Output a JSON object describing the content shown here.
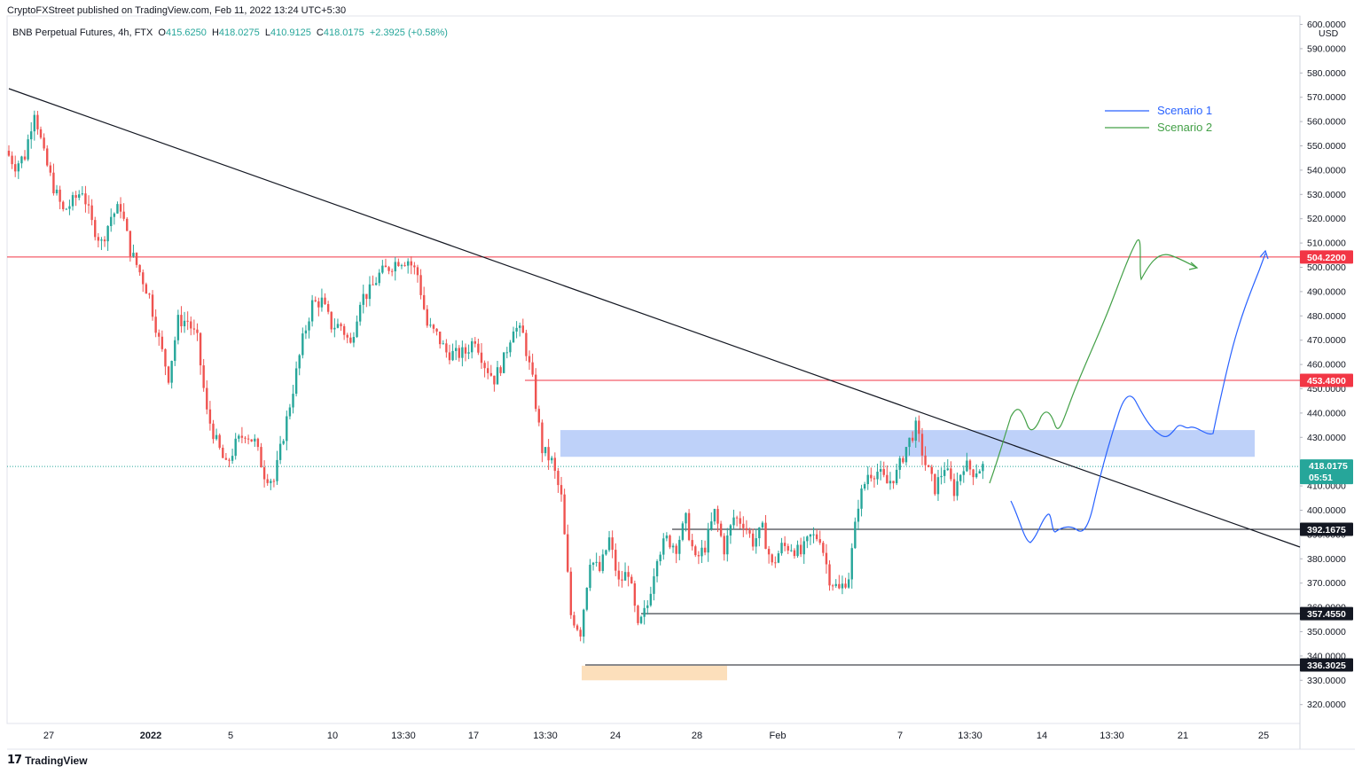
{
  "header": {
    "published_line": "CryptoFXStreet published on TradingView.com, Feb 11, 2022 13:24 UTC+5:30"
  },
  "symbol": {
    "name": "BNB Perpetual Futures, 4h, FTX",
    "o_label": "O",
    "o_value": "415.6250",
    "h_label": "H",
    "h_value": "418.0275",
    "l_label": "L",
    "l_value": "410.9125",
    "c_label": "C",
    "c_value": "418.0175",
    "change": "+2.3925 (+0.58%)"
  },
  "footer": {
    "brand_mark": "17",
    "brand_name": "TradingView"
  },
  "colors": {
    "up": "#26a69a",
    "down": "#ef5350",
    "resistance": "#f23645",
    "support": "#131722",
    "zone_blue": "#a8c1f7",
    "zone_orange": "#fcdcb4",
    "scenario1": "#2962ff",
    "scenario2": "#43a047",
    "trendline": "#131722"
  },
  "chart_data": {
    "type": "candlestick",
    "title": "BNB Perpetual Futures, 4h, FTX",
    "currency_label": "USD",
    "ylim": [
      311,
      601
    ],
    "y_ticks": [
      600,
      590,
      580,
      570,
      560,
      550,
      540,
      530,
      520,
      510,
      500,
      490,
      480,
      470,
      460,
      450,
      440,
      430,
      410,
      400,
      390,
      380,
      370,
      360,
      350,
      340,
      330,
      320
    ],
    "y_tick_labels": [
      "600.0000",
      "590.0000",
      "580.0000",
      "570.0000",
      "560.0000",
      "550.0000",
      "540.0000",
      "530.0000",
      "520.0000",
      "510.0000",
      "500.0000",
      "490.0000",
      "480.0000",
      "470.0000",
      "460.0000",
      "450.0000",
      "440.0000",
      "430.0000",
      "410.0000",
      "400.0000",
      "390.0000",
      "380.0000",
      "370.0000",
      "360.0000",
      "350.0000",
      "340.0000",
      "330.0000",
      "320.0000"
    ],
    "x_tick_labels": [
      "27",
      "2022",
      "5",
      "10",
      "13:30",
      "17",
      "13:30",
      "24",
      "28",
      "Feb",
      "7",
      "13:30",
      "14",
      "13:30",
      "21",
      "25"
    ],
    "x_tick_bold": [
      false,
      true,
      false,
      false,
      false,
      false,
      false,
      false,
      false,
      false,
      false,
      false,
      false,
      false,
      false,
      false
    ],
    "candle_path": [
      548,
      542,
      546,
      565,
      546,
      533,
      523,
      527,
      532,
      518,
      510,
      521,
      525,
      507,
      498,
      488,
      470,
      455,
      478,
      478,
      470,
      440,
      428,
      418,
      427,
      432,
      428,
      415,
      412,
      431,
      450,
      470,
      485,
      486,
      476,
      476,
      468,
      487,
      490,
      497,
      500,
      503,
      503,
      497,
      476,
      472,
      465,
      464,
      465,
      471,
      460,
      454,
      462,
      476,
      472,
      453,
      425,
      420,
      405,
      357,
      350,
      380,
      375,
      388,
      370,
      375,
      351,
      361,
      382,
      388,
      385,
      396,
      379,
      385,
      399,
      384,
      397,
      395,
      387,
      392,
      377,
      385,
      385,
      382,
      389,
      389,
      372,
      367,
      373,
      403,
      415,
      416,
      411,
      415,
      426,
      434,
      419,
      409,
      418,
      408,
      419,
      416,
      418
    ],
    "price_lines": [
      {
        "label": "504.2200",
        "value": 504.22,
        "kind": "resistance"
      },
      {
        "label": "453.4800",
        "value": 453.48,
        "kind": "resistance"
      },
      {
        "label": "392.1675",
        "value": 392.1675,
        "kind": "support"
      },
      {
        "label": "357.4550",
        "value": 357.455,
        "kind": "support"
      },
      {
        "label": "336.3025",
        "value": 336.3025,
        "kind": "support"
      }
    ],
    "current_price": {
      "label": "418.0175",
      "countdown": "05:51",
      "value": 418.0175
    },
    "zones": [
      {
        "name": "blue-demand",
        "from": 422,
        "to": 433
      },
      {
        "name": "orange-low",
        "from": 330,
        "to": 336
      }
    ],
    "scenarios": [
      {
        "name": "Scenario 1",
        "color_key": "scenario1"
      },
      {
        "name": "Scenario 2",
        "color_key": "scenario2"
      }
    ]
  }
}
